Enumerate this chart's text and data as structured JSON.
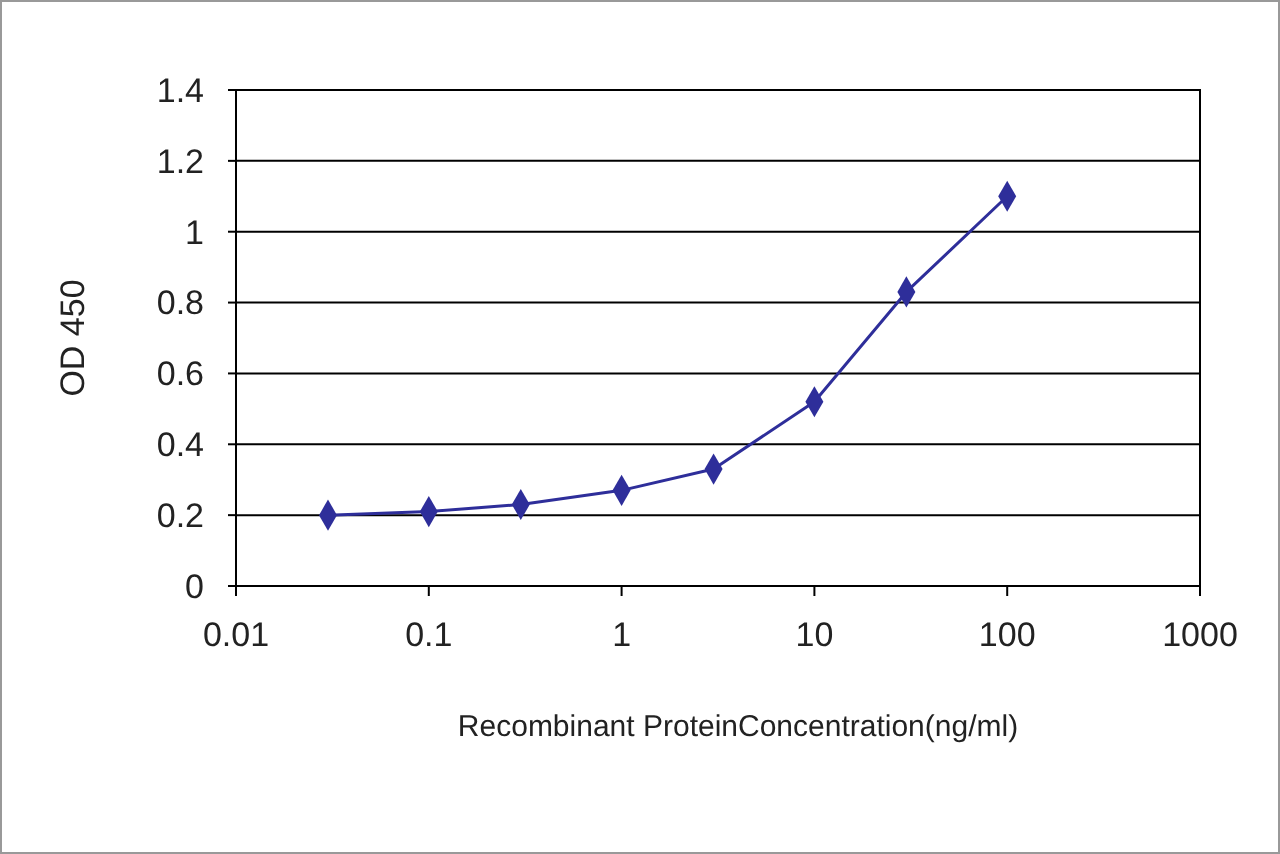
{
  "chart_data": {
    "type": "line",
    "xlabel": "Recombinant ProteinConcentration(ng/ml)",
    "ylabel": "OD 450",
    "x": [
      0.03,
      0.1,
      0.3,
      1,
      3,
      10,
      30,
      100
    ],
    "series": [
      {
        "color": "#2e2e9a",
        "values": [
          0.2,
          0.21,
          0.23,
          0.27,
          0.33,
          0.52,
          0.83,
          1.1
        ]
      }
    ],
    "log": "x",
    "xlim": [
      0.01,
      1000
    ],
    "xticks": [
      0.01,
      0.1,
      1,
      10,
      100,
      1000
    ],
    "ylim": [
      0,
      1.4
    ],
    "yticks": [
      0,
      {
        "value": 0.2,
        "label": "0.2"
      },
      {
        "value": 0.4,
        "label": "0.4"
      },
      {
        "value": 0.6,
        "label": "0.6"
      },
      {
        "value": 0.8,
        "label": "0.8"
      },
      1,
      {
        "value": 1.2,
        "label": "1.2"
      },
      {
        "value": 1.4,
        "label": "1.4"
      }
    ],
    "grid": "y",
    "marker": "diamond",
    "line_style": "solid"
  }
}
